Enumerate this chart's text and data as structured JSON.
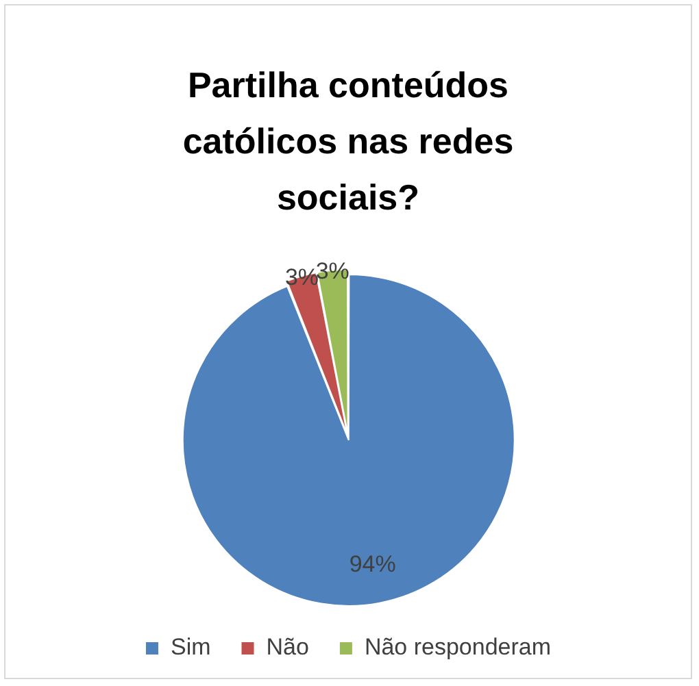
{
  "chart_data": {
    "type": "pie",
    "title": "Partilha conteúdos católicos nas redes sociais?",
    "categories": [
      "Sim",
      "Não",
      "Não responderam"
    ],
    "values": [
      94,
      3,
      3
    ],
    "colors": [
      "#4f81bd",
      "#c0504d",
      "#9bbb59"
    ],
    "value_labels": [
      "94%",
      "3%",
      "3%"
    ],
    "legend": "bottom"
  }
}
